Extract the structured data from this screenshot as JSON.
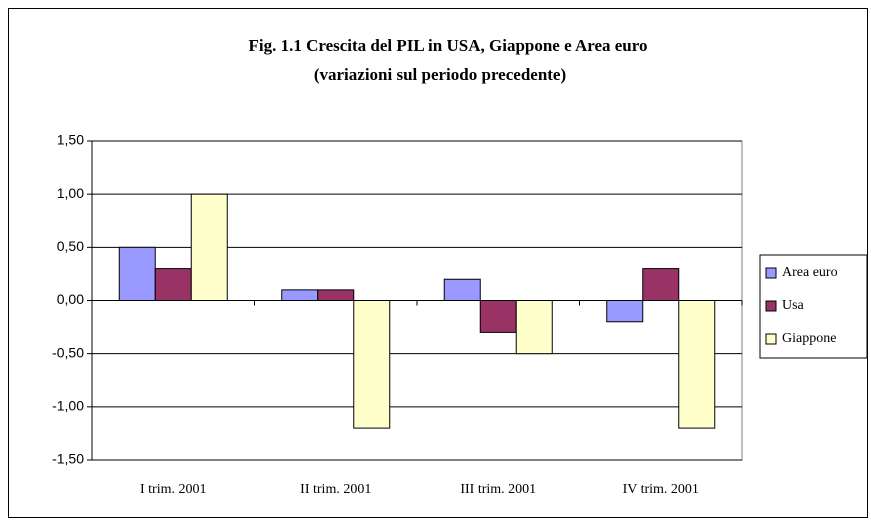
{
  "chart_data": {
    "type": "bar",
    "title": "Fig. 1.1 Crescita del PIL in USA, Giappone e Area euro",
    "subtitle": "(variazioni sul periodo precedente)",
    "categories": [
      "I trim.  2001",
      "II trim.  2001",
      "III trim. 2001",
      "IV trim.  2001"
    ],
    "series": [
      {
        "name": "Area euro",
        "color": "#9999ff",
        "values": [
          0.5,
          0.1,
          0.2,
          -0.2
        ]
      },
      {
        "name": "Usa",
        "color": "#993366",
        "values": [
          0.3,
          0.1,
          -0.3,
          0.3
        ]
      },
      {
        "name": "Giappone",
        "color": "#ffffcc",
        "values": [
          1.0,
          -1.2,
          -0.5,
          -1.2
        ]
      }
    ],
    "ylim": [
      -1.5,
      1.5
    ],
    "yticks": [
      {
        "value": -1.5,
        "label": "-1,50"
      },
      {
        "value": -1.0,
        "label": "-1,00"
      },
      {
        "value": -0.5,
        "label": "-0,50"
      },
      {
        "value": 0,
        "label": "0,00"
      },
      {
        "value": 0.5,
        "label": "0,50"
      },
      {
        "value": 1.0,
        "label": "1,00"
      },
      {
        "value": 1.5,
        "label": "1,50"
      }
    ],
    "grid": true,
    "legend": "right"
  }
}
